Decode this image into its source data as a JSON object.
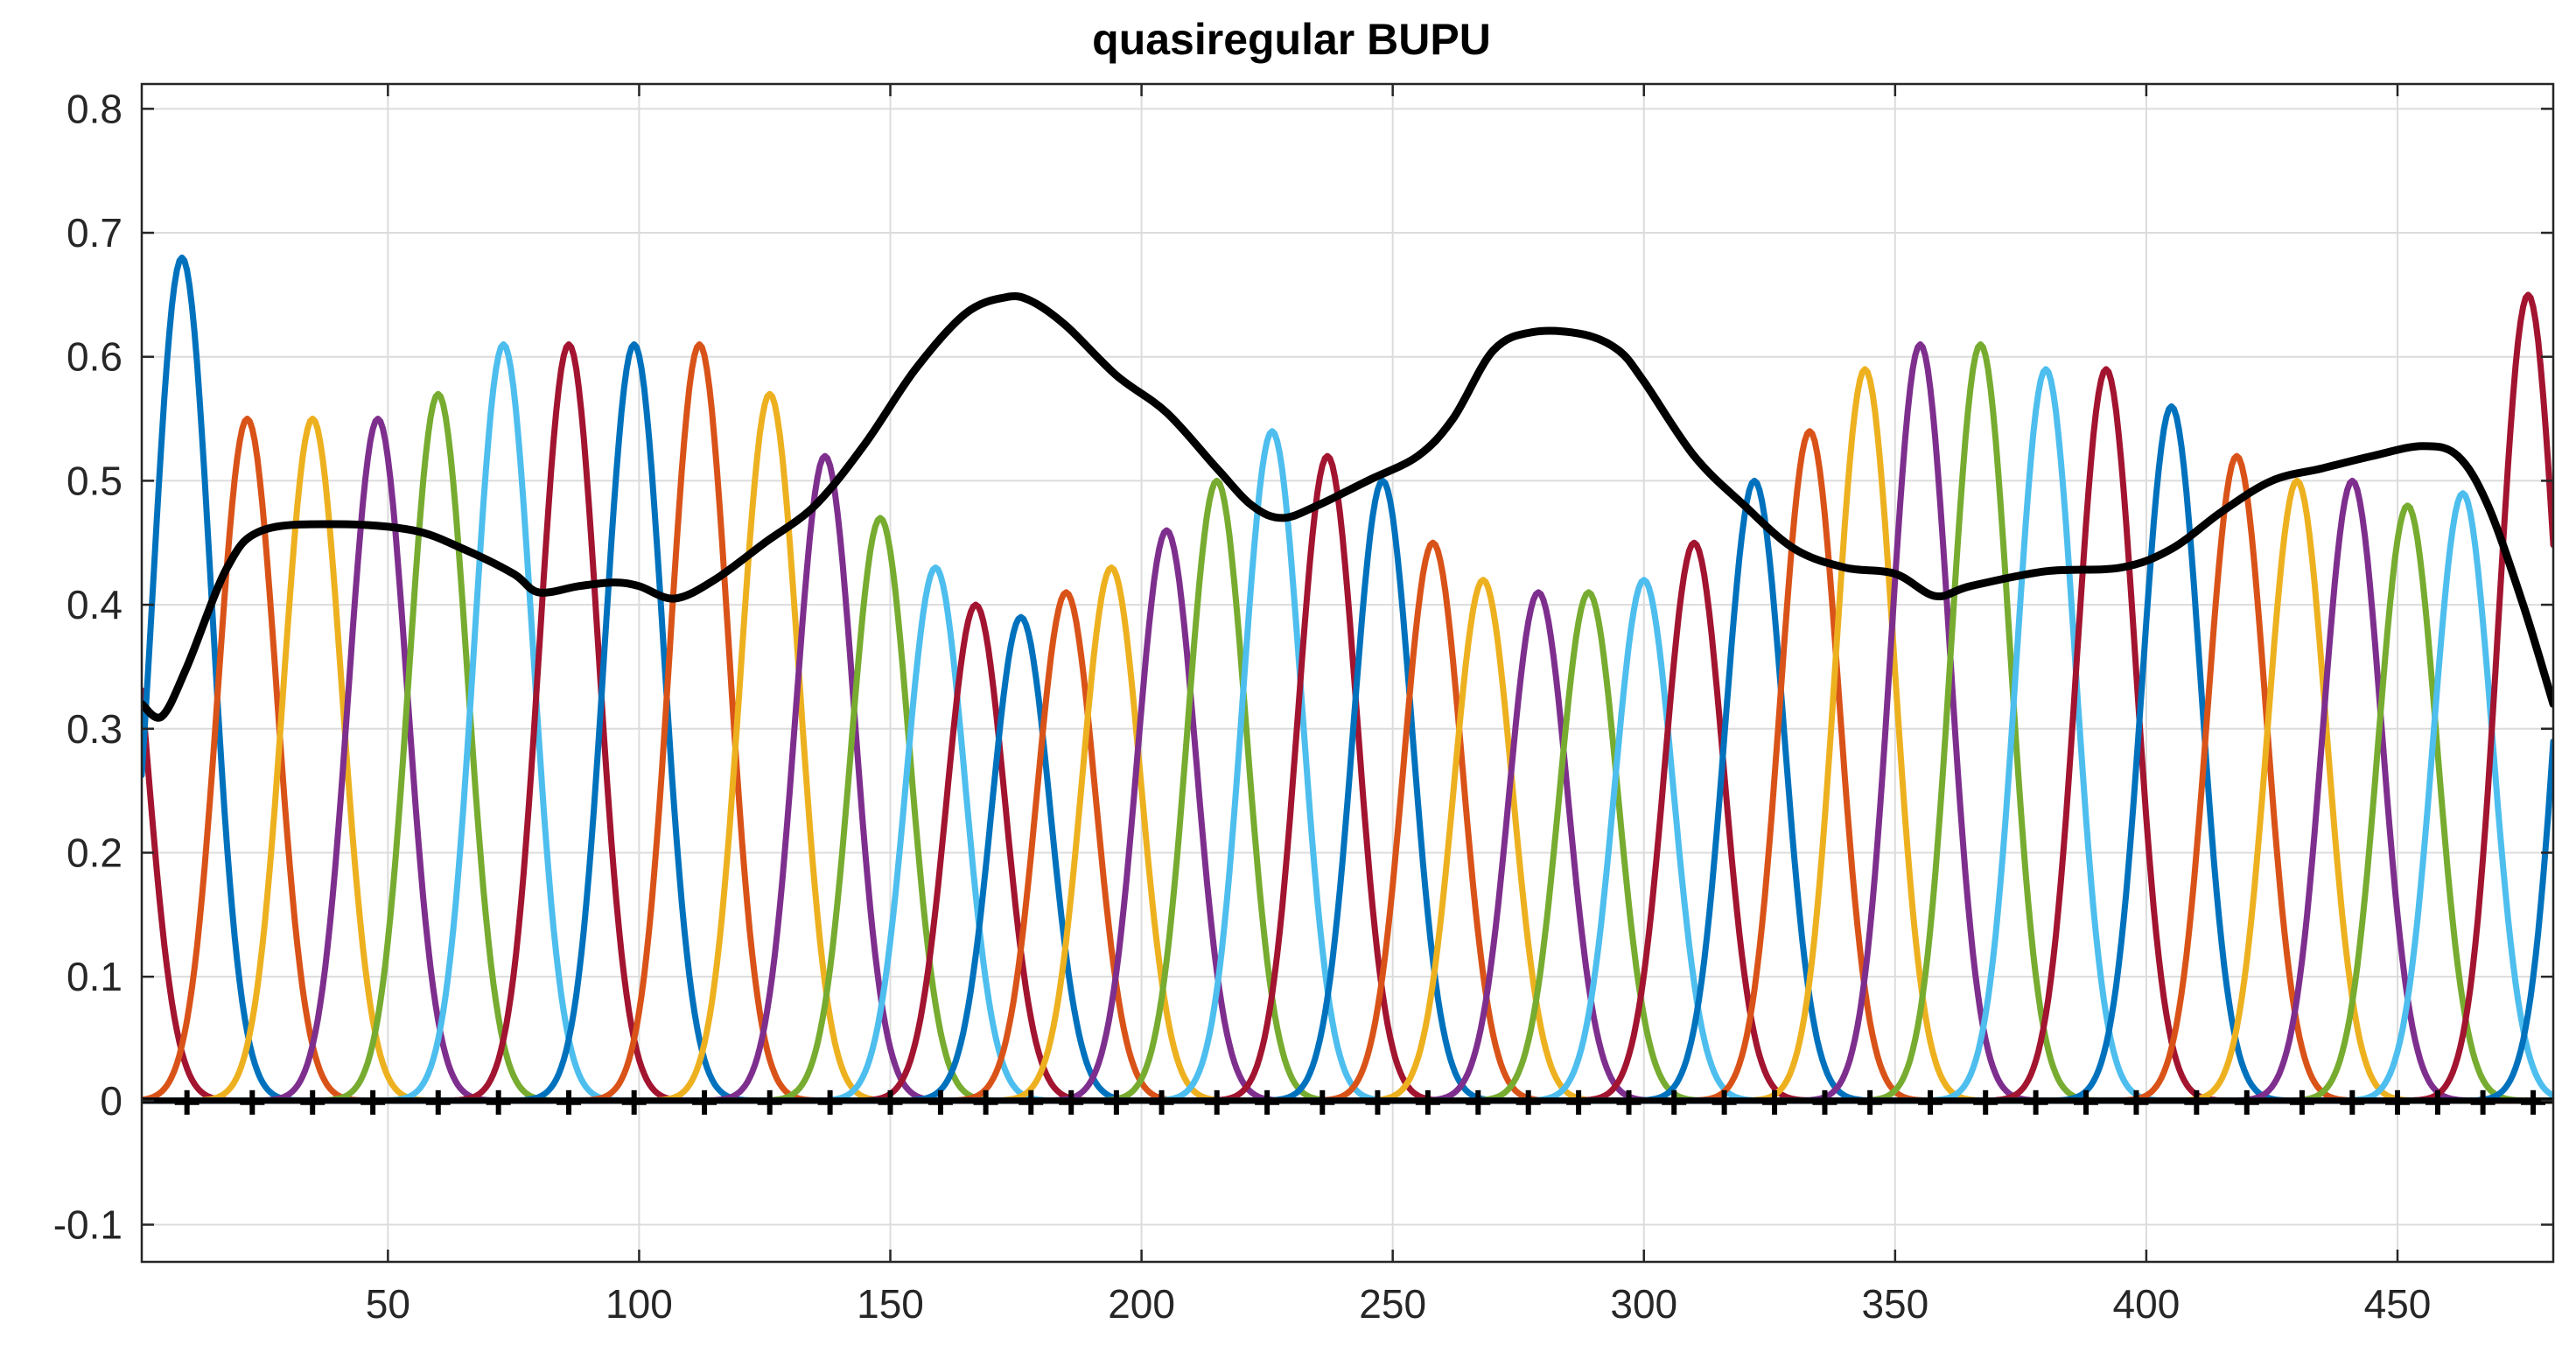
{
  "chart_data": {
    "type": "line",
    "title": "quasiregular BUPU",
    "xlabel": "",
    "ylabel": "",
    "xlim": [
      1,
      481
    ],
    "ylim": [
      -0.13,
      0.82
    ],
    "xticks": [
      50,
      100,
      150,
      200,
      250,
      300,
      350,
      400,
      450
    ],
    "yticks": [
      -0.1,
      0,
      0.1,
      0.2,
      0.3,
      0.4,
      0.5,
      0.6,
      0.7,
      0.8
    ],
    "xtick_labels": [
      "50",
      "100",
      "150",
      "200",
      "250",
      "300",
      "350",
      "400",
      "450"
    ],
    "ytick_labels": [
      "-0.1",
      "0",
      "0.1",
      "0.2",
      "0.3",
      "0.4",
      "0.5",
      "0.6",
      "0.7",
      "0.8"
    ],
    "grid": true,
    "palette": [
      "#0072BD",
      "#D95319",
      "#EDB120",
      "#7E2F8E",
      "#77AC30",
      "#4DBEEE",
      "#A2142F"
    ],
    "basis_functions": {
      "description_style": "gaussian bumps",
      "centers": [
        -4,
        9,
        22,
        35,
        48,
        60,
        73,
        86,
        99,
        112,
        126,
        137,
        148,
        159,
        167,
        176,
        185,
        194,
        205,
        215,
        226,
        237,
        248,
        258,
        268,
        279,
        289,
        300,
        310,
        322,
        333,
        344,
        355,
        367,
        380,
        392,
        405,
        418,
        430,
        441,
        452,
        463,
        476,
        488
      ],
      "peaks": [
        0.48,
        0.68,
        0.55,
        0.55,
        0.55,
        0.57,
        0.61,
        0.61,
        0.61,
        0.61,
        0.57,
        0.52,
        0.47,
        0.43,
        0.4,
        0.39,
        0.41,
        0.43,
        0.46,
        0.5,
        0.54,
        0.52,
        0.5,
        0.45,
        0.42,
        0.41,
        0.41,
        0.42,
        0.45,
        0.5,
        0.54,
        0.59,
        0.61,
        0.61,
        0.59,
        0.59,
        0.56,
        0.52,
        0.5,
        0.5,
        0.48,
        0.49,
        0.65,
        0.6
      ],
      "color_indices": [
        6,
        0,
        1,
        2,
        3,
        4,
        5,
        6,
        0,
        1,
        2,
        3,
        4,
        5,
        6,
        0,
        1,
        2,
        3,
        4,
        5,
        6,
        0,
        1,
        2,
        3,
        4,
        5,
        6,
        0,
        1,
        2,
        3,
        4,
        5,
        6,
        0,
        1,
        2,
        3,
        4,
        5,
        6,
        0
      ],
      "sigma": 5.8
    },
    "envelope": {
      "color": "#000000",
      "x": [
        1,
        5,
        10,
        18,
        25,
        40,
        55,
        65,
        75,
        80,
        88,
        95,
        100,
        107,
        115,
        125,
        135,
        145,
        155,
        165,
        173,
        178,
        185,
        195,
        205,
        215,
        222,
        228,
        235,
        245,
        255,
        262,
        270,
        278,
        288,
        295,
        300,
        310,
        320,
        330,
        340,
        350,
        358,
        365,
        380,
        395,
        405,
        415,
        425,
        435,
        445,
        455,
        462,
        468,
        475,
        481
      ],
      "y": [
        0.32,
        0.31,
        0.35,
        0.43,
        0.46,
        0.465,
        0.46,
        0.445,
        0.425,
        0.41,
        0.415,
        0.418,
        0.415,
        0.405,
        0.42,
        0.45,
        0.48,
        0.53,
        0.59,
        0.635,
        0.648,
        0.645,
        0.625,
        0.585,
        0.555,
        0.51,
        0.48,
        0.47,
        0.48,
        0.5,
        0.52,
        0.55,
        0.605,
        0.62,
        0.618,
        0.605,
        0.58,
        0.52,
        0.48,
        0.445,
        0.43,
        0.425,
        0.407,
        0.415,
        0.427,
        0.43,
        0.445,
        0.475,
        0.5,
        0.51,
        0.52,
        0.528,
        0.52,
        0.48,
        0.4,
        0.32
      ]
    },
    "knots": {
      "y": 0,
      "x": [
        10,
        23,
        35,
        47,
        60,
        72,
        86,
        99,
        113,
        126,
        138,
        150,
        160,
        169,
        178,
        186,
        195,
        204,
        215,
        225,
        236,
        247,
        257,
        267,
        277,
        287,
        297,
        306,
        316,
        326,
        336,
        345,
        357,
        368,
        378,
        388,
        398,
        410,
        420,
        431,
        441,
        450,
        458,
        467,
        477
      ]
    }
  }
}
